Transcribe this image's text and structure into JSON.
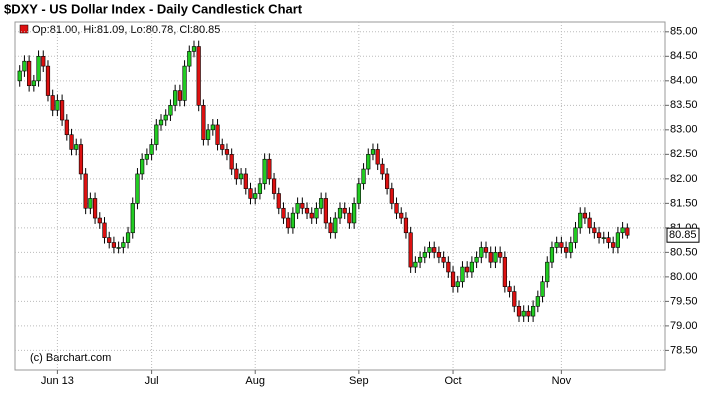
{
  "chart_data": {
    "type": "candlestick",
    "title": "$DXY - US Dollar Index - Daily Candlestick Chart",
    "legend": "Op:81.00, Hi:81.09, Lo:80.78, Cl:80.85",
    "watermark": "(c) Barchart.com",
    "last_label": "80.85",
    "up_color": "#22cc22",
    "down_color": "#dd1111",
    "grid": true,
    "xlim": [
      -1,
      137
    ],
    "xticks": [
      {
        "value": 8,
        "label": "Jun 13"
      },
      {
        "value": 28,
        "label": "Jul"
      },
      {
        "value": 50,
        "label": "Aug"
      },
      {
        "value": 72,
        "label": "Sep"
      },
      {
        "value": 92,
        "label": "Oct"
      },
      {
        "value": 115,
        "label": "Nov"
      }
    ],
    "ylim": [
      78.1,
      85.2
    ],
    "yticks": [
      {
        "value": 78.5,
        "label": "78.50"
      },
      {
        "value": 79,
        "label": "79.00"
      },
      {
        "value": 79.5,
        "label": "79.50"
      },
      {
        "value": 80,
        "label": "80.00"
      },
      {
        "value": 80.5,
        "label": "80.50"
      },
      {
        "value": 81,
        "label": "81.00"
      },
      {
        "value": 81.5,
        "label": "81.50"
      },
      {
        "value": 82,
        "label": "82.00"
      },
      {
        "value": 82.5,
        "label": "82.50"
      },
      {
        "value": 83,
        "label": "83.00"
      },
      {
        "value": 83.5,
        "label": "83.50"
      },
      {
        "value": 84,
        "label": "84.00"
      },
      {
        "value": 84.5,
        "label": "84.50"
      },
      {
        "value": 85,
        "label": "85.00"
      }
    ],
    "open": [
      84.0,
      84.2,
      84.4,
      83.9,
      84.0,
      84.5,
      84.3,
      83.7,
      83.4,
      83.6,
      83.2,
      82.9,
      82.6,
      82.7,
      82.1,
      81.4,
      81.6,
      81.2,
      81.1,
      80.8,
      80.7,
      80.6,
      80.6,
      80.7,
      80.9,
      81.5,
      82.1,
      82.4,
      82.5,
      82.7,
      83.1,
      83.2,
      83.3,
      83.5,
      83.8,
      83.6,
      84.3,
      84.6,
      84.7,
      83.5,
      82.8,
      83.0,
      83.1,
      82.7,
      82.6,
      82.5,
      82.2,
      82.0,
      82.1,
      81.8,
      81.6,
      81.7,
      81.9,
      82.4,
      82.0,
      81.7,
      81.4,
      81.2,
      81.0,
      81.3,
      81.5,
      81.4,
      81.3,
      81.2,
      81.4,
      81.6,
      81.1,
      80.9,
      81.2,
      81.4,
      81.3,
      81.1,
      81.5,
      81.9,
      82.2,
      82.5,
      82.6,
      82.3,
      82.1,
      81.8,
      81.5,
      81.3,
      81.2,
      80.9,
      80.2,
      80.3,
      80.4,
      80.5,
      80.6,
      80.5,
      80.4,
      80.3,
      80.1,
      79.8,
      79.9,
      80.2,
      80.1,
      80.3,
      80.4,
      80.6,
      80.5,
      80.3,
      80.5,
      80.4,
      79.8,
      79.7,
      79.4,
      79.2,
      79.3,
      79.2,
      79.4,
      79.6,
      79.9,
      80.3,
      80.6,
      80.7,
      80.6,
      80.5,
      80.7,
      81.0,
      81.3,
      81.2,
      81.0,
      80.9,
      80.8,
      80.8,
      80.7,
      80.6,
      80.9,
      81.0
    ],
    "high": [
      84.32,
      84.52,
      84.52,
      84.12,
      84.62,
      84.62,
      84.42,
      83.82,
      83.72,
      83.72,
      83.32,
      83.02,
      82.82,
      82.82,
      82.22,
      81.72,
      81.72,
      81.32,
      81.22,
      80.92,
      80.82,
      80.72,
      80.82,
      81.02,
      81.62,
      82.22,
      82.52,
      82.62,
      82.82,
      83.22,
      83.32,
      83.42,
      83.62,
      83.92,
      83.92,
      84.42,
      84.72,
      84.82,
      84.82,
      83.62,
      83.12,
      83.22,
      83.22,
      82.82,
      82.72,
      82.62,
      82.32,
      82.22,
      82.22,
      81.92,
      81.82,
      82.02,
      82.52,
      82.52,
      82.12,
      81.82,
      81.52,
      81.32,
      81.42,
      81.62,
      81.62,
      81.52,
      81.42,
      81.52,
      81.72,
      81.72,
      81.22,
      81.32,
      81.52,
      81.52,
      81.42,
      81.62,
      82.02,
      82.32,
      82.62,
      82.72,
      82.72,
      82.42,
      82.22,
      81.92,
      81.62,
      81.42,
      81.32,
      81.02,
      80.42,
      80.52,
      80.62,
      80.72,
      80.72,
      80.62,
      80.52,
      80.42,
      80.22,
      80.02,
      80.32,
      80.32,
      80.42,
      80.52,
      80.72,
      80.72,
      80.62,
      80.62,
      80.62,
      80.52,
      79.92,
      79.82,
      79.52,
      79.42,
      79.42,
      79.52,
      79.72,
      80.02,
      80.42,
      80.72,
      80.82,
      80.82,
      80.72,
      80.82,
      81.12,
      81.42,
      81.42,
      81.32,
      81.12,
      81.02,
      80.92,
      80.92,
      80.82,
      81.02,
      81.12,
      81.09
    ],
    "low": [
      83.88,
      84.08,
      83.78,
      83.78,
      83.88,
      84.18,
      83.58,
      83.28,
      83.28,
      83.08,
      82.78,
      82.48,
      82.48,
      81.98,
      81.28,
      81.28,
      81.08,
      80.98,
      80.68,
      80.58,
      80.48,
      80.48,
      80.48,
      80.58,
      80.78,
      81.38,
      81.98,
      82.28,
      82.38,
      82.58,
      82.98,
      83.08,
      83.18,
      83.38,
      83.48,
      83.48,
      84.18,
      84.48,
      83.38,
      82.68,
      82.68,
      82.88,
      82.58,
      82.48,
      82.38,
      82.08,
      81.88,
      81.88,
      81.68,
      81.48,
      81.48,
      81.58,
      81.78,
      81.88,
      81.58,
      81.28,
      81.08,
      80.88,
      80.88,
      81.18,
      81.28,
      81.18,
      81.08,
      81.08,
      81.28,
      80.98,
      80.78,
      80.78,
      81.08,
      81.18,
      80.98,
      80.98,
      81.38,
      81.78,
      82.08,
      82.38,
      82.18,
      81.98,
      81.68,
      81.38,
      81.18,
      81.08,
      80.78,
      80.08,
      80.08,
      80.18,
      80.28,
      80.38,
      80.38,
      80.28,
      80.18,
      79.98,
      79.68,
      79.68,
      79.78,
      79.98,
      79.98,
      80.18,
      80.28,
      80.38,
      80.18,
      80.18,
      80.28,
      79.68,
      79.58,
      79.28,
      79.08,
      79.08,
      79.08,
      79.08,
      79.28,
      79.48,
      79.78,
      80.18,
      80.48,
      80.48,
      80.38,
      80.38,
      80.58,
      80.88,
      81.08,
      80.88,
      80.78,
      80.68,
      80.68,
      80.58,
      80.48,
      80.48,
      80.78,
      80.78
    ],
    "close": [
      84.2,
      84.4,
      83.9,
      84.0,
      84.5,
      84.3,
      83.7,
      83.4,
      83.6,
      83.2,
      82.9,
      82.6,
      82.7,
      82.1,
      81.4,
      81.6,
      81.2,
      81.1,
      80.8,
      80.7,
      80.6,
      80.6,
      80.7,
      80.9,
      81.5,
      82.1,
      82.4,
      82.5,
      82.7,
      83.1,
      83.2,
      83.3,
      83.5,
      83.8,
      83.6,
      84.3,
      84.6,
      84.7,
      83.5,
      82.8,
      83.0,
      83.1,
      82.7,
      82.6,
      82.5,
      82.2,
      82.0,
      82.1,
      81.8,
      81.6,
      81.7,
      81.9,
      82.4,
      82.0,
      81.7,
      81.4,
      81.2,
      81.0,
      81.3,
      81.5,
      81.4,
      81.3,
      81.2,
      81.4,
      81.6,
      81.1,
      80.9,
      81.2,
      81.4,
      81.3,
      81.1,
      81.5,
      81.9,
      82.2,
      82.5,
      82.6,
      82.3,
      82.1,
      81.8,
      81.5,
      81.3,
      81.2,
      80.9,
      80.2,
      80.3,
      80.4,
      80.5,
      80.6,
      80.5,
      80.4,
      80.3,
      80.1,
      79.8,
      79.9,
      80.2,
      80.1,
      80.3,
      80.4,
      80.6,
      80.5,
      80.3,
      80.5,
      80.4,
      79.8,
      79.7,
      79.4,
      79.2,
      79.3,
      79.2,
      79.4,
      79.6,
      79.9,
      80.3,
      80.6,
      80.7,
      80.6,
      80.5,
      80.7,
      81.0,
      81.3,
      81.2,
      81.0,
      80.9,
      80.8,
      80.8,
      80.7,
      80.6,
      80.9,
      81.0,
      80.85
    ]
  }
}
